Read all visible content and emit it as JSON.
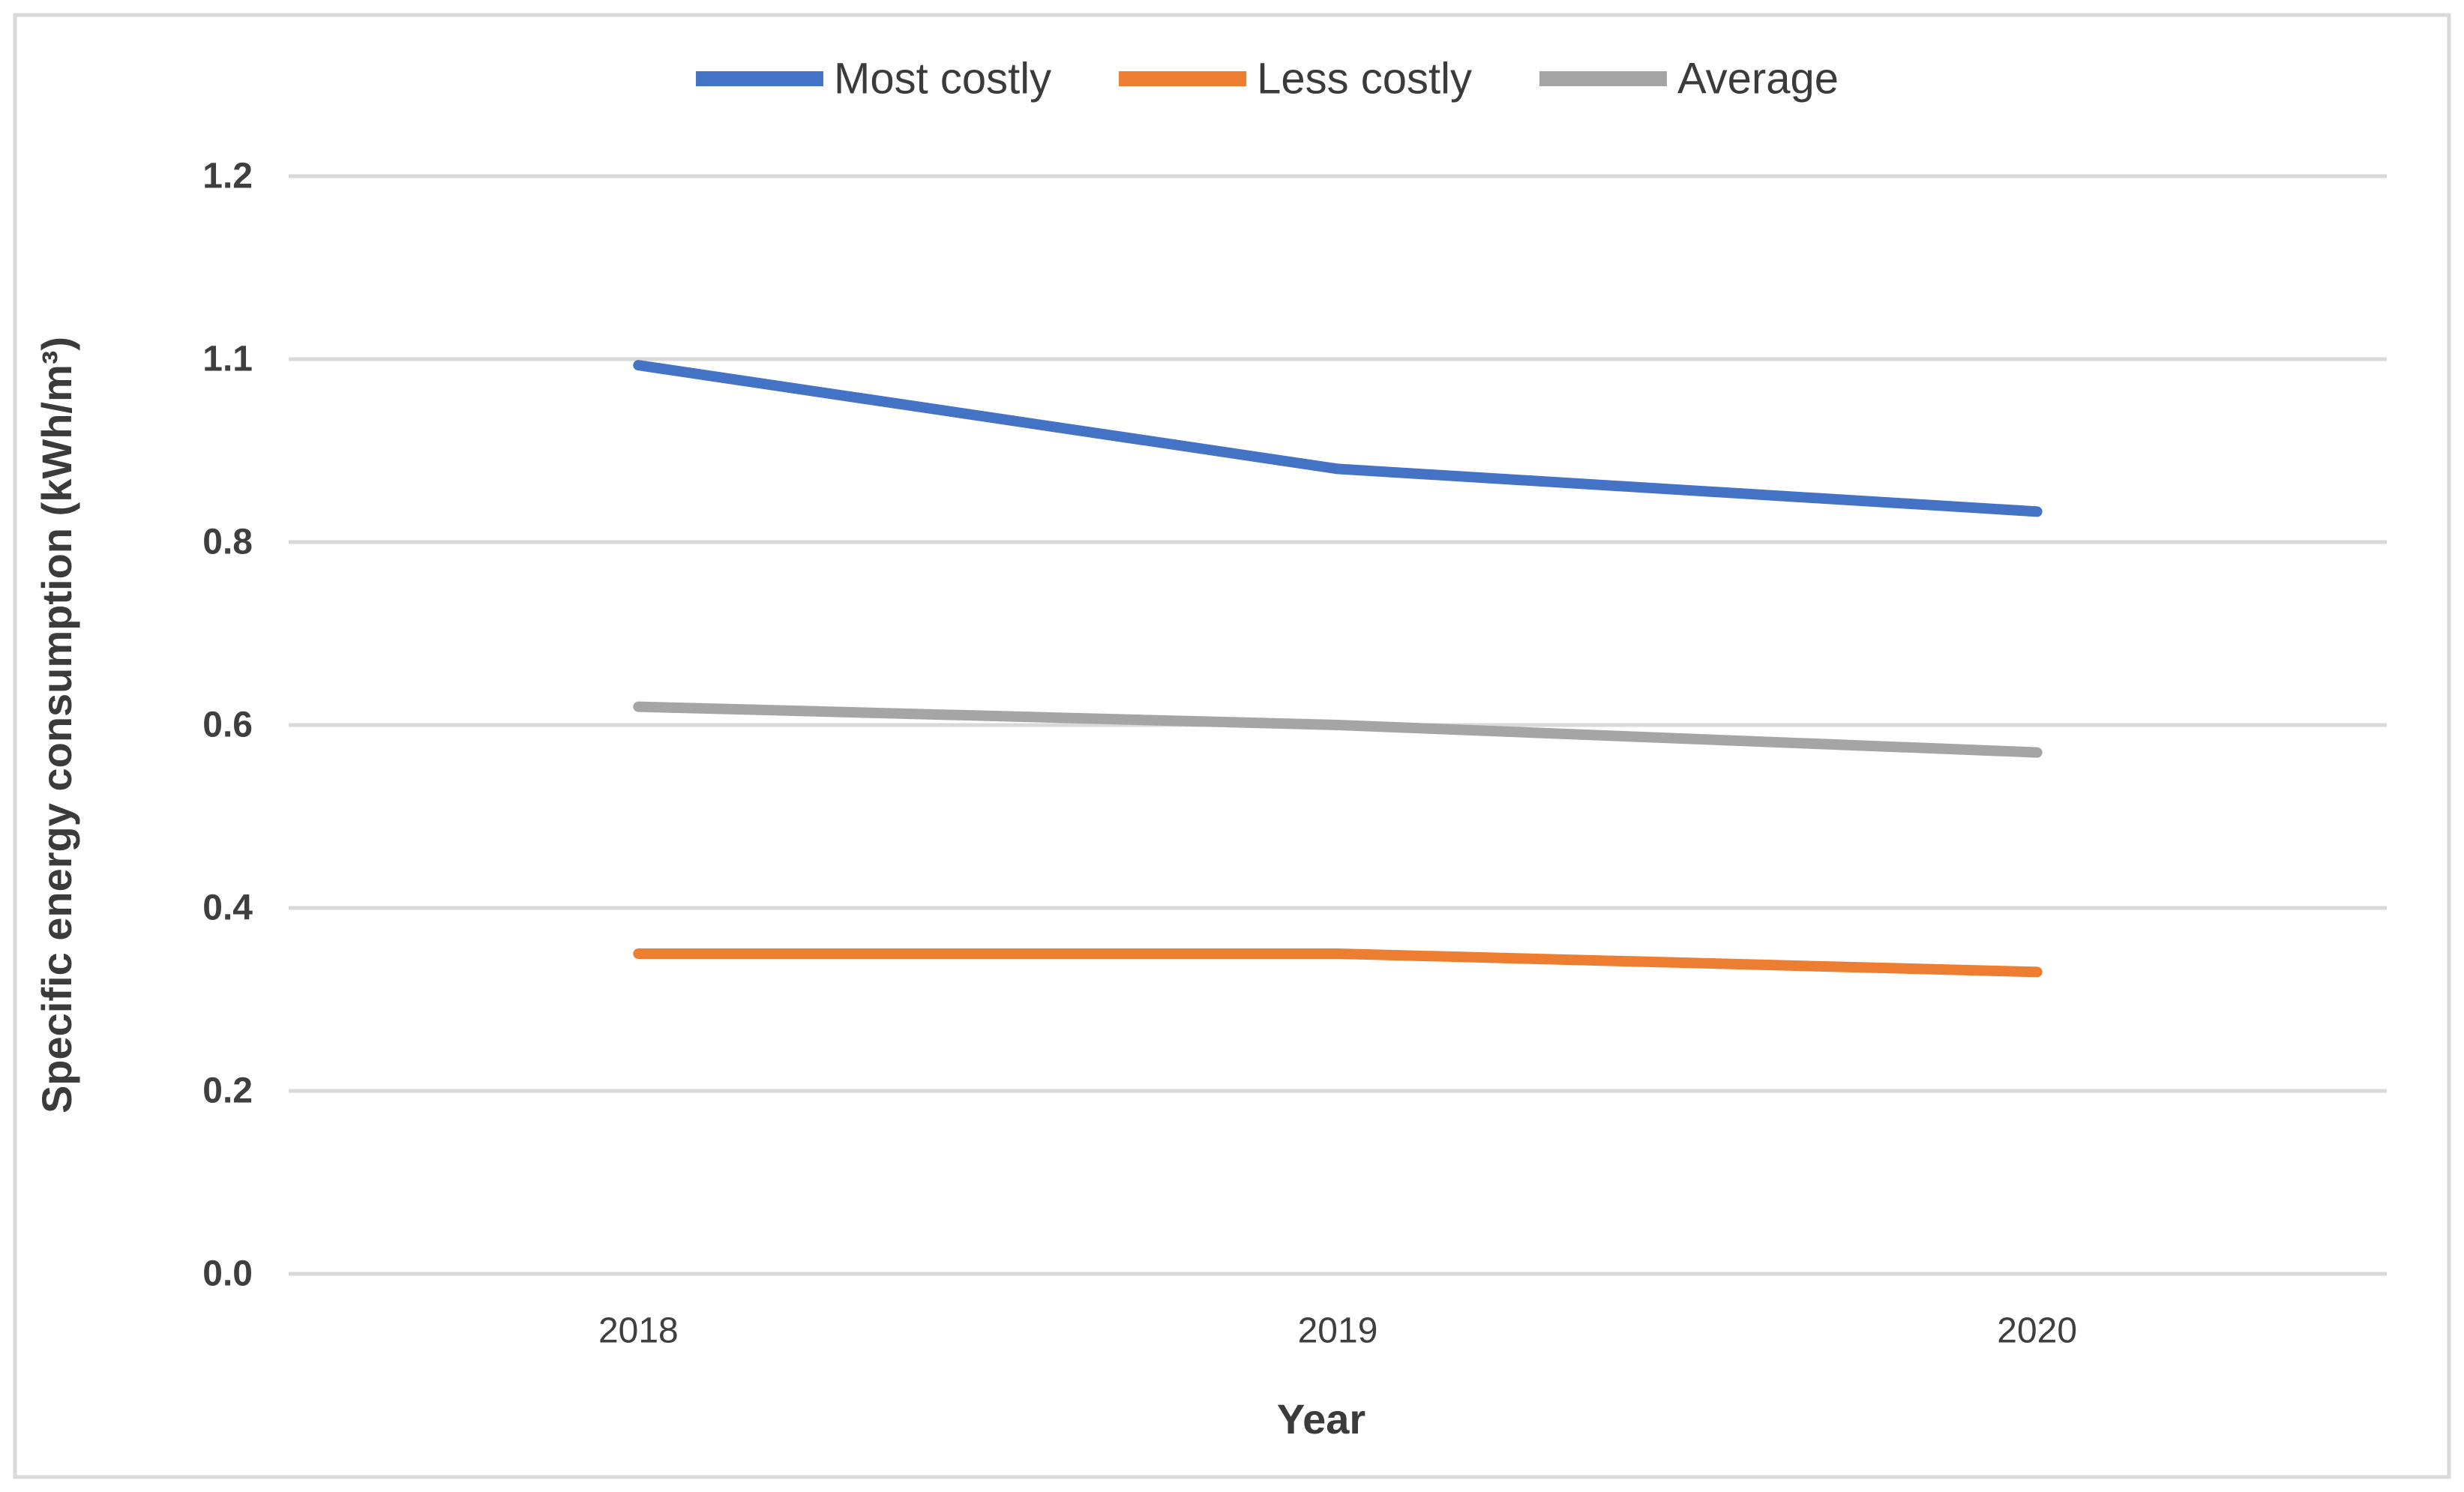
{
  "chart_data": {
    "type": "line",
    "xlabel": "Year",
    "ylabel": "Specific energy consumption (kWh/m³)",
    "categories": [
      "2018",
      "2019",
      "2020"
    ],
    "series": [
      {
        "name": "Most costly",
        "color": "#4472C4",
        "values": [
          1.09,
          0.92,
          0.85
        ]
      },
      {
        "name": "Less costly",
        "color": "#ED7D31",
        "values": [
          0.35,
          0.35,
          0.33
        ]
      },
      {
        "name": "Average",
        "color": "#A5A5A5",
        "values": [
          0.62,
          0.6,
          0.57
        ]
      }
    ],
    "y_ticks": [
      0.0,
      0.2,
      0.4,
      0.6,
      0.8,
      1.1,
      1.2
    ],
    "y_tick_labels": [
      "0.0",
      "0.2",
      "0.4",
      "0.6",
      "0.8",
      "1.1",
      "1.2"
    ],
    "grid": true,
    "legend_position": "top"
  },
  "colors": {
    "background": "#ffffff",
    "figure_border": "#D9D9D9",
    "gridline": "#D9D9D9",
    "text": "#3f3f3f"
  }
}
